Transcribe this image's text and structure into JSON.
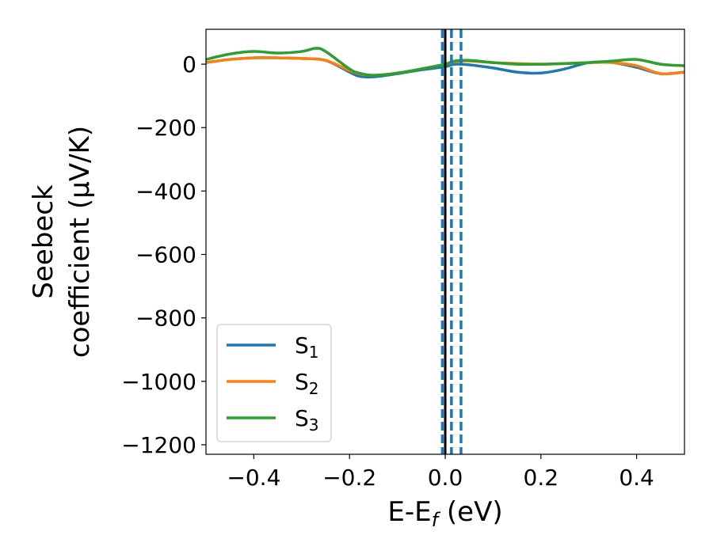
{
  "chart_data": {
    "type": "line",
    "xlabel_main": "E-E",
    "xlabel_sub": "f",
    "xlabel_unit": " (eV)",
    "ylabel_line1": "Seebeck",
    "ylabel_line2": "coefficient  (μV/K)",
    "xlim": [
      -0.5,
      0.5
    ],
    "ylim": [
      -1230,
      110
    ],
    "xticks": [
      -0.4,
      -0.2,
      0.0,
      0.2,
      0.4
    ],
    "xtick_labels": [
      "−0.4",
      "−0.2",
      "0.0",
      "0.2",
      "0.4"
    ],
    "yticks": [
      0,
      -200,
      -400,
      -600,
      -800,
      -1000,
      -1200
    ],
    "ytick_labels": [
      "0",
      "−200",
      "−400",
      "−600",
      "−800",
      "−1000",
      "−1200"
    ],
    "legend_position": "lower-left",
    "grid": false,
    "series": [
      {
        "name": "S",
        "sub": "1",
        "color": "#1f77b4",
        "x": [
          -0.5,
          -0.45,
          -0.4,
          -0.35,
          -0.3,
          -0.25,
          -0.2,
          -0.18,
          -0.15,
          -0.1,
          -0.05,
          0.0,
          0.02,
          0.05,
          0.1,
          0.15,
          0.2,
          0.25,
          0.3,
          0.35,
          0.4,
          0.45,
          0.5
        ],
        "y": [
          5,
          15,
          20,
          20,
          18,
          12,
          -25,
          -38,
          -40,
          -30,
          -18,
          -8,
          0,
          -2,
          -12,
          -25,
          -28,
          -15,
          5,
          5,
          -10,
          -30,
          -25
        ]
      },
      {
        "name": "S",
        "sub": "2",
        "color": "#ff7f0e",
        "x": [
          -0.5,
          -0.45,
          -0.4,
          -0.35,
          -0.3,
          -0.25,
          -0.2,
          -0.18,
          -0.15,
          -0.1,
          -0.05,
          0.0,
          0.02,
          0.05,
          0.1,
          0.15,
          0.2,
          0.25,
          0.3,
          0.35,
          0.4,
          0.45,
          0.5
        ],
        "y": [
          5,
          15,
          20,
          20,
          18,
          12,
          -20,
          -30,
          -35,
          -28,
          -15,
          0,
          8,
          10,
          5,
          2,
          0,
          2,
          5,
          5,
          -5,
          -30,
          -25
        ]
      },
      {
        "name": "S",
        "sub": "3",
        "color": "#2ca02c",
        "x": [
          -0.5,
          -0.45,
          -0.4,
          -0.35,
          -0.3,
          -0.27,
          -0.25,
          -0.2,
          -0.18,
          -0.15,
          -0.1,
          -0.05,
          0.0,
          0.02,
          0.05,
          0.1,
          0.15,
          0.2,
          0.25,
          0.3,
          0.35,
          0.4,
          0.45,
          0.5
        ],
        "y": [
          15,
          32,
          40,
          35,
          40,
          50,
          40,
          -15,
          -28,
          -35,
          -28,
          -15,
          0,
          10,
          12,
          5,
          0,
          0,
          2,
          5,
          10,
          15,
          0,
          -5
        ]
      }
    ],
    "vlines": [
      {
        "x": 0.0,
        "color": "#000000",
        "style": "solid"
      },
      {
        "x": -0.006,
        "color": "#1f77b4",
        "style": "dashed"
      },
      {
        "x": 0.013,
        "color": "#1f77b4",
        "style": "dashed"
      },
      {
        "x": 0.033,
        "color": "#1f77b4",
        "style": "dashed"
      }
    ]
  }
}
